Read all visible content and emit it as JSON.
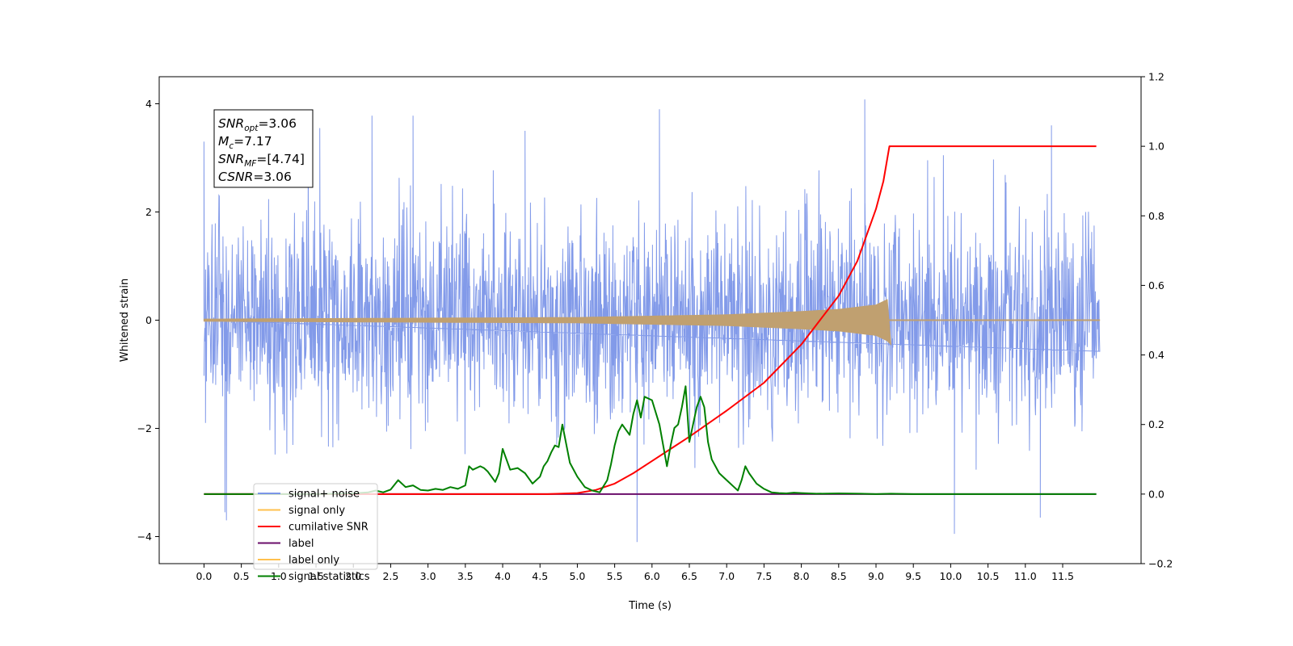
{
  "chart_data": {
    "type": "line",
    "title": "",
    "xlabel": "Time (s)",
    "ylabel": "Whitened strain",
    "xlim": [
      -0.6,
      12.55
    ],
    "ylim_left": [
      -4.5,
      4.5
    ],
    "ylim_right": [
      -0.2,
      1.2
    ],
    "x_ticks": [
      0.0,
      0.5,
      1.0,
      1.5,
      2.0,
      2.5,
      3.0,
      3.5,
      4.0,
      4.5,
      5.0,
      5.5,
      6.0,
      6.5,
      7.0,
      7.5,
      8.0,
      8.5,
      9.0,
      9.5,
      10.0,
      10.5,
      11.0,
      11.5
    ],
    "x_tick_labels": [
      "0.0",
      "0.5",
      "1.0",
      "1.5",
      "2.0",
      "2.5",
      "3.0",
      "3.5",
      "4.0",
      "4.5",
      "5.0",
      "5.5",
      "6.0",
      "6.5",
      "7.0",
      "7.5",
      "8.0",
      "8.5",
      "9.0",
      "9.5",
      "10.0",
      "10.5",
      "11.0",
      "11.5"
    ],
    "y_left_ticks": [
      4,
      2,
      0,
      -2,
      -4
    ],
    "y_left_tick_labels": [
      "4",
      "2",
      "0",
      "−2",
      "−4"
    ],
    "y_right_ticks": [
      1.2,
      1.0,
      0.8,
      0.6,
      0.4,
      0.2,
      0.0,
      -0.2
    ],
    "y_right_tick_labels": [
      "1.2",
      "1.0",
      "0.8",
      "0.6",
      "0.4",
      "0.2",
      "0.0",
      "−0.2"
    ],
    "grid": false,
    "legend_placement": "lower-left",
    "legend": [
      {
        "name": "signal+ noise",
        "color": "#7b95e8"
      },
      {
        "name": "signal only",
        "color": "#ffc04d"
      },
      {
        "name": "cumilative SNR",
        "color": "#ff0000"
      },
      {
        "name": "label",
        "color": "#6a0d6a"
      },
      {
        "name": "label only",
        "color": "#ffc04d"
      },
      {
        "name": "signal statistics",
        "color": "#008000"
      }
    ],
    "annotation": {
      "lines": [
        {
          "base": "SNR",
          "sub": "opt",
          "value": "=3.06"
        },
        {
          "base": "M",
          "sub": "c",
          "value": "=7.17"
        },
        {
          "base": "SNR",
          "sub": "MF",
          "value": "=[4.74]"
        },
        {
          "base": "CSNR",
          "sub": "",
          "value": "=3.06"
        }
      ]
    },
    "series": [
      {
        "name": "signal+ noise",
        "axis": "left",
        "color": "#7b95e8",
        "x_range": [
          0.0,
          12.0
        ],
        "spread_std": 0.95,
        "peaks": [
          {
            "x": 0.0,
            "y": 3.3
          },
          {
            "x": 0.02,
            "y": -1.9
          },
          {
            "x": 0.28,
            "y": -3.55
          },
          {
            "x": 0.3,
            "y": -3.7
          },
          {
            "x": 1.55,
            "y": 3.55
          },
          {
            "x": 2.25,
            "y": 3.78
          },
          {
            "x": 2.8,
            "y": 3.78
          },
          {
            "x": 4.3,
            "y": 3.5
          },
          {
            "x": 5.8,
            "y": -4.1
          },
          {
            "x": 6.1,
            "y": 3.9
          },
          {
            "x": 8.85,
            "y": 4.08
          },
          {
            "x": 10.05,
            "y": -3.95
          },
          {
            "x": 11.2,
            "y": -3.65
          },
          {
            "x": 11.35,
            "y": 3.6
          }
        ]
      },
      {
        "name": "signal only",
        "axis": "left",
        "color": "#c0a070",
        "chirp_amplitude": [
          [
            0.0,
            0.02
          ],
          [
            5.0,
            0.05
          ],
          [
            7.0,
            0.1
          ],
          [
            8.0,
            0.16
          ],
          [
            8.5,
            0.2
          ],
          [
            9.0,
            0.28
          ],
          [
            9.18,
            0.4
          ]
        ],
        "merger_x": 9.18
      },
      {
        "name": "cumilative SNR",
        "axis": "right",
        "color": "#ff0000",
        "x": [
          0.0,
          4.6,
          5.0,
          5.25,
          5.5,
          5.75,
          6.0,
          6.25,
          6.5,
          7.0,
          7.5,
          8.0,
          8.5,
          8.75,
          9.0,
          9.1,
          9.18,
          9.5,
          10.0,
          11.0,
          11.95
        ],
        "values": [
          0.0,
          0.0,
          0.003,
          0.012,
          0.03,
          0.06,
          0.095,
          0.13,
          0.165,
          0.24,
          0.32,
          0.43,
          0.57,
          0.67,
          0.82,
          0.9,
          1.0,
          1.0,
          1.0,
          1.0,
          1.0
        ]
      },
      {
        "name": "label",
        "axis": "right",
        "color": "#6a0d6a",
        "x": [
          0.0,
          11.95
        ],
        "values": [
          0.0,
          0.0
        ]
      },
      {
        "name": "signal statistics",
        "axis": "right",
        "color": "#008000",
        "x": [
          0.0,
          1.5,
          2.0,
          2.2,
          2.3,
          2.4,
          2.5,
          2.6,
          2.7,
          2.8,
          2.9,
          3.0,
          3.1,
          3.2,
          3.3,
          3.4,
          3.5,
          3.55,
          3.6,
          3.7,
          3.75,
          3.8,
          3.85,
          3.9,
          3.95,
          4.0,
          4.1,
          4.2,
          4.3,
          4.4,
          4.5,
          4.55,
          4.6,
          4.65,
          4.7,
          4.75,
          4.8,
          4.9,
          5.0,
          5.1,
          5.2,
          5.3,
          5.4,
          5.45,
          5.5,
          5.55,
          5.6,
          5.7,
          5.75,
          5.8,
          5.85,
          5.9,
          6.0,
          6.1,
          6.2,
          6.25,
          6.3,
          6.35,
          6.4,
          6.45,
          6.5,
          6.55,
          6.6,
          6.65,
          6.7,
          6.75,
          6.8,
          6.9,
          7.0,
          7.1,
          7.15,
          7.2,
          7.25,
          7.3,
          7.4,
          7.5,
          7.6,
          7.7,
          7.8,
          7.9,
          8.0,
          8.2,
          8.5,
          8.8,
          9.0,
          9.2,
          9.5,
          10.0,
          11.0,
          11.95
        ],
        "values": [
          0.0,
          0.0,
          0.002,
          0.005,
          0.01,
          0.005,
          0.013,
          0.04,
          0.02,
          0.025,
          0.012,
          0.01,
          0.015,
          0.012,
          0.02,
          0.015,
          0.025,
          0.08,
          0.07,
          0.08,
          0.075,
          0.065,
          0.05,
          0.035,
          0.06,
          0.13,
          0.07,
          0.075,
          0.06,
          0.03,
          0.05,
          0.08,
          0.095,
          0.12,
          0.14,
          0.135,
          0.2,
          0.09,
          0.05,
          0.02,
          0.01,
          0.005,
          0.04,
          0.085,
          0.14,
          0.18,
          0.2,
          0.17,
          0.23,
          0.27,
          0.22,
          0.28,
          0.27,
          0.2,
          0.08,
          0.14,
          0.19,
          0.2,
          0.25,
          0.31,
          0.15,
          0.2,
          0.25,
          0.28,
          0.25,
          0.15,
          0.1,
          0.06,
          0.04,
          0.02,
          0.01,
          0.04,
          0.08,
          0.06,
          0.03,
          0.015,
          0.005,
          0.003,
          0.002,
          0.004,
          0.003,
          0.001,
          0.002,
          0.001,
          0.0,
          0.001,
          0.0,
          0.0,
          0.0,
          0.0
        ]
      }
    ]
  }
}
